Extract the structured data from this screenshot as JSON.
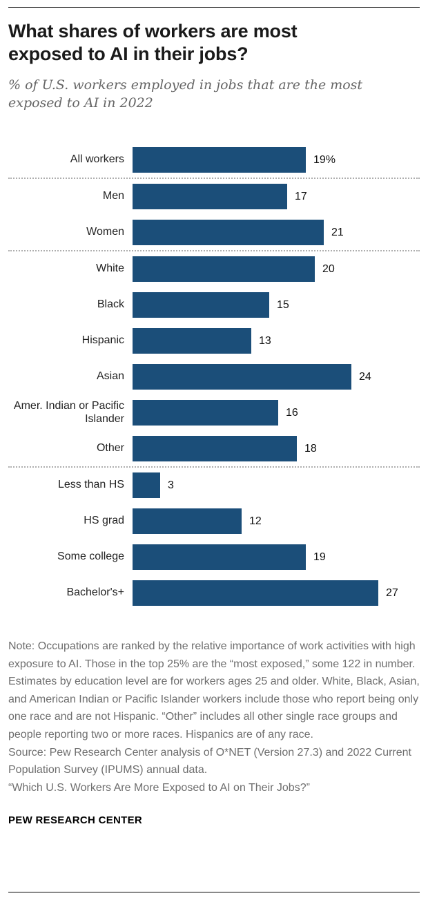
{
  "chart_data": {
    "type": "bar",
    "orientation": "horizontal",
    "title": "What shares of workers are most exposed to AI in their jobs?",
    "subtitle": "% of U.S. workers employed in jobs that are the most exposed to AI in 2022",
    "categories": [
      "All workers",
      "Men",
      "Women",
      "White",
      "Black",
      "Hispanic",
      "Asian",
      "Amer. Indian or Pacific Islander",
      "Other",
      "Less than HS",
      "HS grad",
      "Some college",
      "Bachelor's+"
    ],
    "values": [
      19,
      17,
      21,
      20,
      15,
      13,
      24,
      16,
      18,
      3,
      12,
      19,
      27
    ],
    "value_labels": [
      "19%",
      "17",
      "21",
      "20",
      "15",
      "13",
      "24",
      "16",
      "18",
      "3",
      "12",
      "19",
      "27"
    ],
    "xlabel": "",
    "ylabel": "",
    "xlim": [
      0,
      27
    ],
    "grid": false,
    "legend": "none",
    "bar_color": "#1b4e79",
    "separators_after": [
      0,
      2,
      8
    ]
  },
  "footer": {
    "note": "Note: Occupations are ranked by the relative importance of work activities with high exposure to AI. Those in the top 25% are the “most exposed,” some 122 in number. Estimates by education level are for workers ages 25 and older. White, Black, Asian, and American Indian or Pacific Islander workers include those who report being only one race and are not Hispanic. “Other” includes all other single race groups and people reporting two or more races. Hispanics are of any race.",
    "source": "Source: Pew Research Center analysis of O*NET (Version 27.3) and 2022 Current Population Survey (IPUMS) annual data.",
    "report": "“Which U.S. Workers Are More Exposed to AI on Their Jobs?”",
    "brand": "PEW RESEARCH CENTER"
  }
}
